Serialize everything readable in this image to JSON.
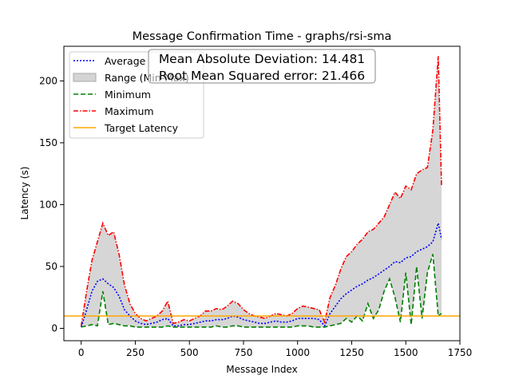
{
  "chart_data": {
    "type": "line",
    "title": "Message Confirmation Time - graphs/rsi-sma",
    "xlabel": "Message Index",
    "ylabel": "Latency (s)",
    "xlim": [
      -80,
      1750
    ],
    "ylim": [
      -10,
      228
    ],
    "xticks": [
      0,
      250,
      500,
      750,
      1000,
      1250,
      1500,
      1750
    ],
    "yticks": [
      0,
      50,
      100,
      150,
      200
    ],
    "target_latency": 10,
    "annotation": {
      "lines": [
        "Mean Absolute Deviation: 14.481",
        "Root Mean Squared error: 21.466"
      ]
    },
    "legend": {
      "placement": "top-left",
      "entries": [
        "Average",
        "Range (Min-Max)",
        "Minimum",
        "Maximum",
        "Target Latency"
      ]
    },
    "colors": {
      "average": "#0000ff",
      "range": "#c8c8c8",
      "minimum": "#008000",
      "maximum": "#ff0000",
      "target": "#ffa500"
    },
    "x": [
      0,
      25,
      50,
      75,
      100,
      125,
      150,
      175,
      200,
      225,
      250,
      275,
      300,
      325,
      350,
      375,
      400,
      425,
      450,
      475,
      500,
      525,
      550,
      575,
      600,
      625,
      650,
      675,
      700,
      725,
      750,
      775,
      800,
      825,
      850,
      875,
      900,
      925,
      950,
      975,
      1000,
      1025,
      1050,
      1075,
      1100,
      1125,
      1150,
      1175,
      1200,
      1225,
      1250,
      1275,
      1300,
      1325,
      1350,
      1375,
      1400,
      1425,
      1450,
      1475,
      1500,
      1525,
      1550,
      1575,
      1600,
      1625,
      1650,
      1665
    ],
    "series": [
      {
        "name": "Maximum",
        "values": [
          2,
          30,
          55,
          70,
          85,
          75,
          78,
          60,
          35,
          20,
          12,
          8,
          6,
          8,
          10,
          14,
          22,
          4,
          5,
          7,
          6,
          8,
          10,
          14,
          14,
          16,
          15,
          18,
          22,
          20,
          15,
          12,
          10,
          9,
          8,
          10,
          12,
          11,
          10,
          12,
          16,
          18,
          17,
          16,
          15,
          5,
          25,
          35,
          48,
          58,
          62,
          68,
          72,
          78,
          80,
          85,
          90,
          100,
          110,
          105,
          115,
          112,
          125,
          128,
          130,
          160,
          220,
          115
        ]
      },
      {
        "name": "Average",
        "values": [
          1,
          15,
          30,
          38,
          40,
          36,
          33,
          26,
          15,
          10,
          6,
          4,
          3,
          4,
          5,
          7,
          8,
          2,
          2,
          3,
          3,
          4,
          5,
          6,
          6,
          7,
          7,
          8,
          10,
          9,
          7,
          6,
          5,
          4,
          4,
          5,
          6,
          5,
          5,
          6,
          8,
          8,
          8,
          8,
          7,
          2,
          12,
          18,
          24,
          28,
          31,
          34,
          36,
          39,
          41,
          44,
          47,
          50,
          54,
          53,
          57,
          58,
          62,
          64,
          66,
          70,
          85,
          72
        ]
      },
      {
        "name": "Minimum",
        "values": [
          1,
          2,
          3,
          2,
          30,
          3,
          4,
          3,
          2,
          2,
          1,
          1,
          1,
          1,
          1,
          1,
          2,
          1,
          1,
          1,
          1,
          1,
          1,
          1,
          1,
          2,
          1,
          1,
          2,
          2,
          1,
          1,
          1,
          1,
          1,
          1,
          1,
          1,
          1,
          1,
          2,
          2,
          2,
          1,
          1,
          1,
          2,
          3,
          4,
          8,
          5,
          10,
          6,
          20,
          8,
          15,
          30,
          40,
          25,
          5,
          45,
          3,
          50,
          8,
          45,
          60,
          10,
          12
        ]
      }
    ]
  }
}
